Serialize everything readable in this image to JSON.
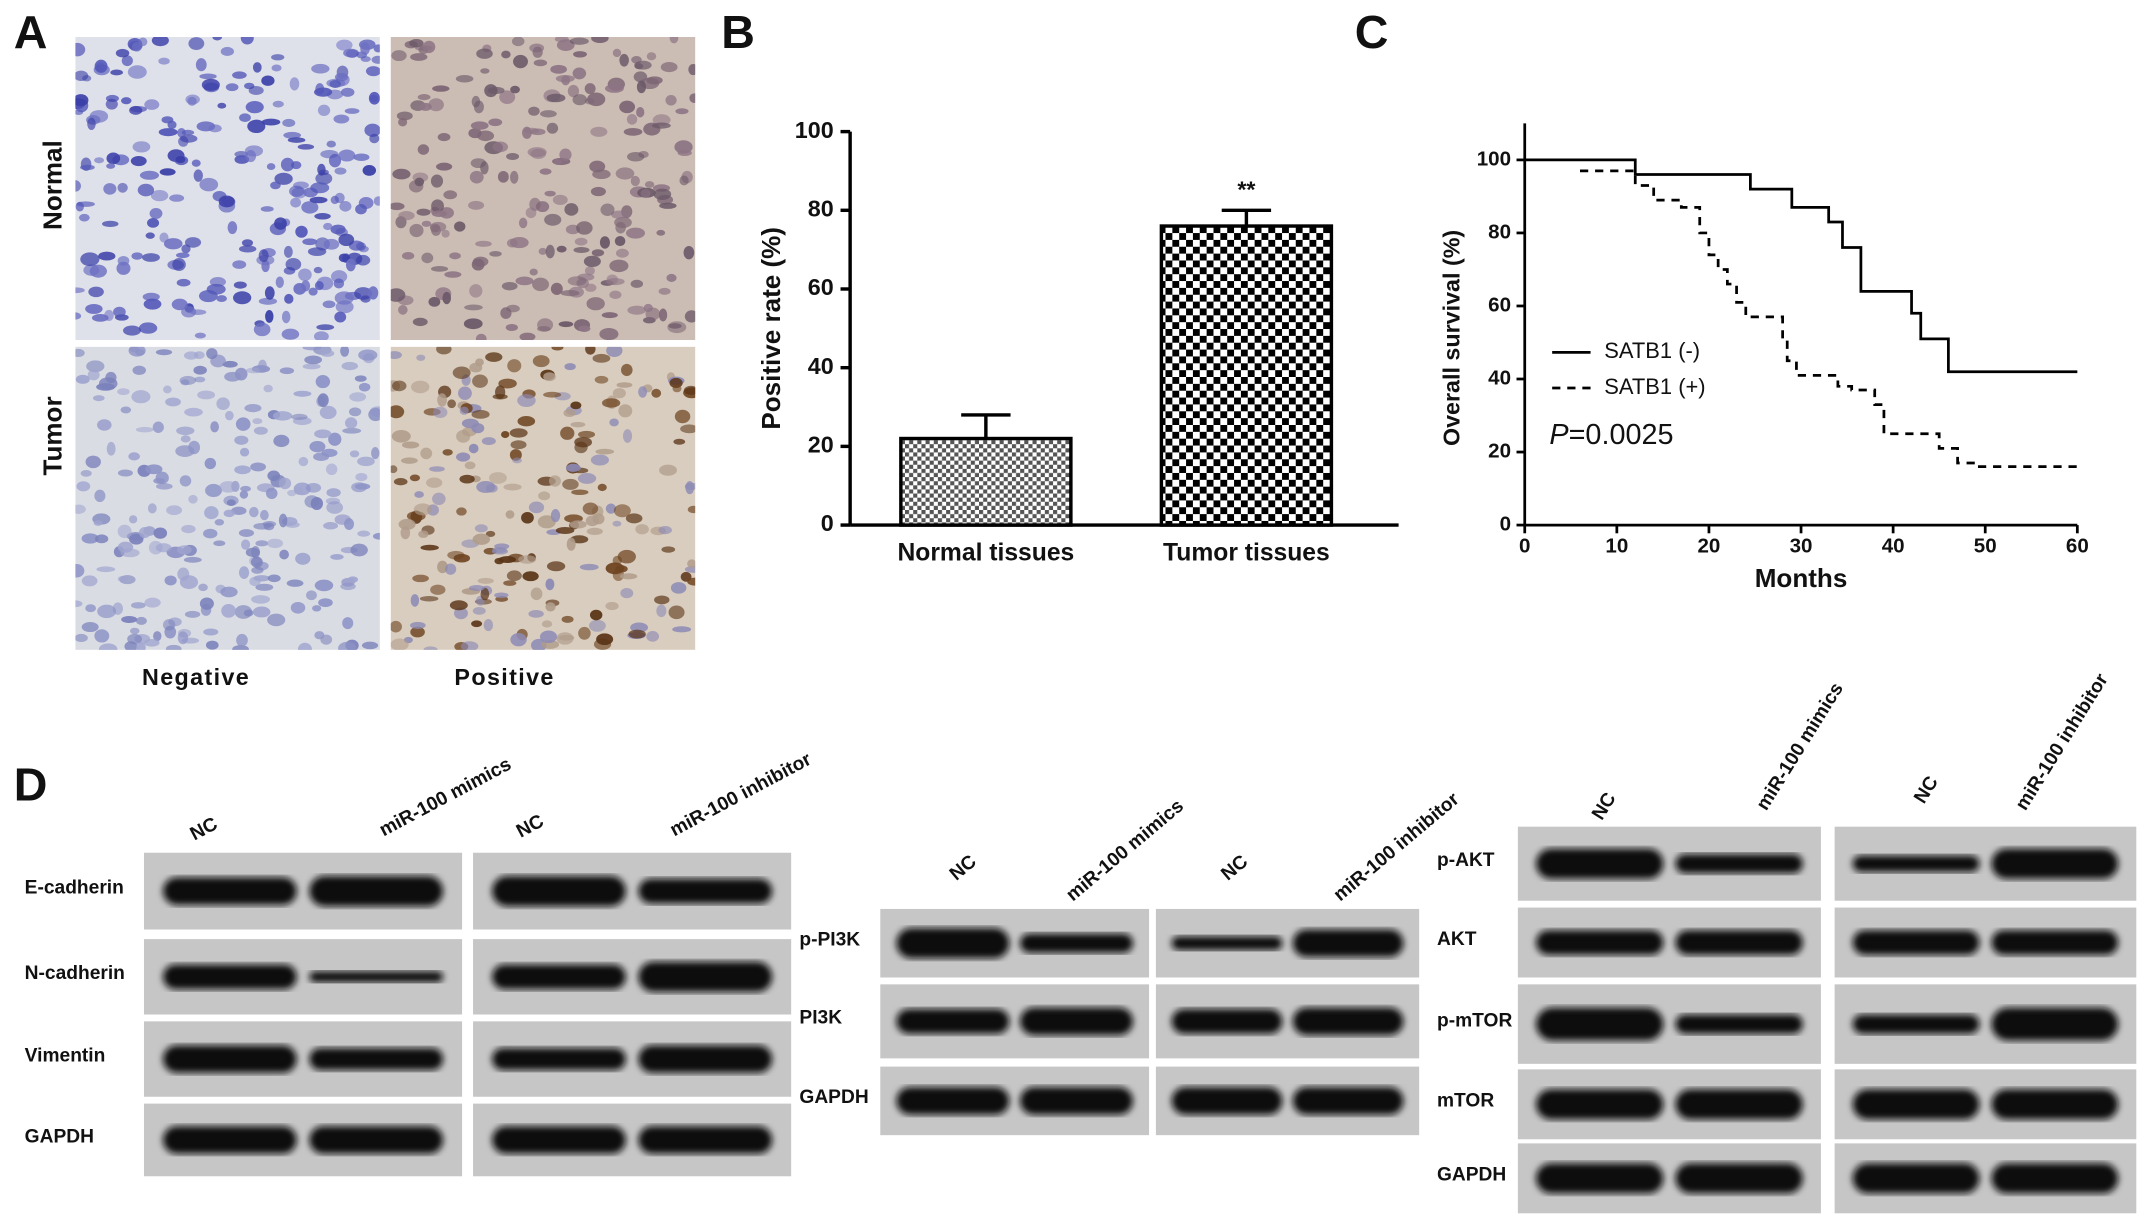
{
  "panel_labels": [
    "A",
    "B",
    "C",
    "D"
  ],
  "panel_a": {
    "rows": [
      "Normal",
      "Tumor"
    ],
    "columns": [
      "Negative",
      "Positive"
    ]
  },
  "chart_data": [
    {
      "type": "bar",
      "categories": [
        "Normal tissues",
        "Tumor tissues"
      ],
      "values": [
        22,
        76
      ],
      "errors": [
        6,
        4
      ],
      "significance": [
        null,
        "**"
      ],
      "ylabel": "Positive rate (%)",
      "ylim": [
        0,
        100
      ],
      "yticks": [
        0,
        20,
        40,
        60,
        80,
        100
      ],
      "color": "#000000"
    },
    {
      "type": "line",
      "xlabel": "Months",
      "ylabel": "Overall survival (%)",
      "xlim": [
        0,
        60
      ],
      "xticks": [
        0,
        10,
        20,
        30,
        40,
        50,
        60
      ],
      "ylim": [
        0,
        110
      ],
      "yticks": [
        0,
        20,
        40,
        60,
        80,
        100
      ],
      "p_value": {
        "symbol": "P",
        "text": "=0.0025"
      },
      "series": [
        {
          "name": "SATB1 (-)",
          "color": "#000000",
          "dash": false,
          "x": [
            0,
            12,
            12,
            24.5,
            24.5,
            29,
            29,
            33,
            33,
            34.5,
            34.5,
            36.5,
            36.5,
            42,
            42,
            43,
            43,
            46,
            46,
            60
          ],
          "values": [
            100,
            100,
            96,
            96,
            92,
            92,
            87,
            87,
            83,
            83,
            76,
            76,
            64,
            64,
            58,
            58,
            51,
            51,
            42,
            42
          ]
        },
        {
          "name": "SATB1 (+)",
          "color": "#000000",
          "dash": true,
          "x": [
            6,
            12,
            12,
            14,
            14,
            17,
            17,
            19,
            19,
            20,
            20,
            21,
            21,
            22,
            22,
            23,
            23,
            24,
            24,
            25.5,
            25.5,
            28,
            28,
            28.5,
            28.5,
            29.5,
            29.5,
            31,
            31,
            34,
            34,
            35.5,
            35.5,
            38,
            38,
            39,
            39,
            40,
            40,
            45,
            45,
            47,
            47,
            49,
            49,
            50,
            50,
            60
          ],
          "values": [
            97,
            97,
            93,
            93,
            89,
            89,
            87,
            87,
            80,
            80,
            74,
            74,
            70,
            70,
            66,
            66,
            61,
            61,
            57,
            57,
            57,
            57,
            51,
            51,
            45,
            45,
            41,
            41,
            41,
            41,
            38,
            38,
            37,
            37,
            33,
            33,
            25,
            25,
            25,
            25,
            21,
            21,
            17,
            17,
            16,
            16,
            16,
            16
          ]
        }
      ]
    }
  ],
  "panel_d": {
    "blots": [
      {
        "lanes": [
          "NC",
          "miR-100 mimics",
          "NC",
          "miR-100 inhibitor"
        ],
        "rows": [
          "E-cadherin",
          "N-cadherin",
          "Vimentin",
          "GAPDH"
        ]
      },
      {
        "lanes": [
          "NC",
          "miR-100 mimics",
          "NC",
          "miR-100 inhibitor"
        ],
        "rows": [
          "p-PI3K",
          "PI3K",
          "GAPDH"
        ]
      },
      {
        "lanes": [
          "NC",
          "miR-100 mimics",
          "NC",
          "miR-100 inhibitor"
        ],
        "rows": [
          "p-AKT",
          "AKT",
          "p-mTOR",
          "mTOR",
          "GAPDH"
        ]
      }
    ]
  }
}
